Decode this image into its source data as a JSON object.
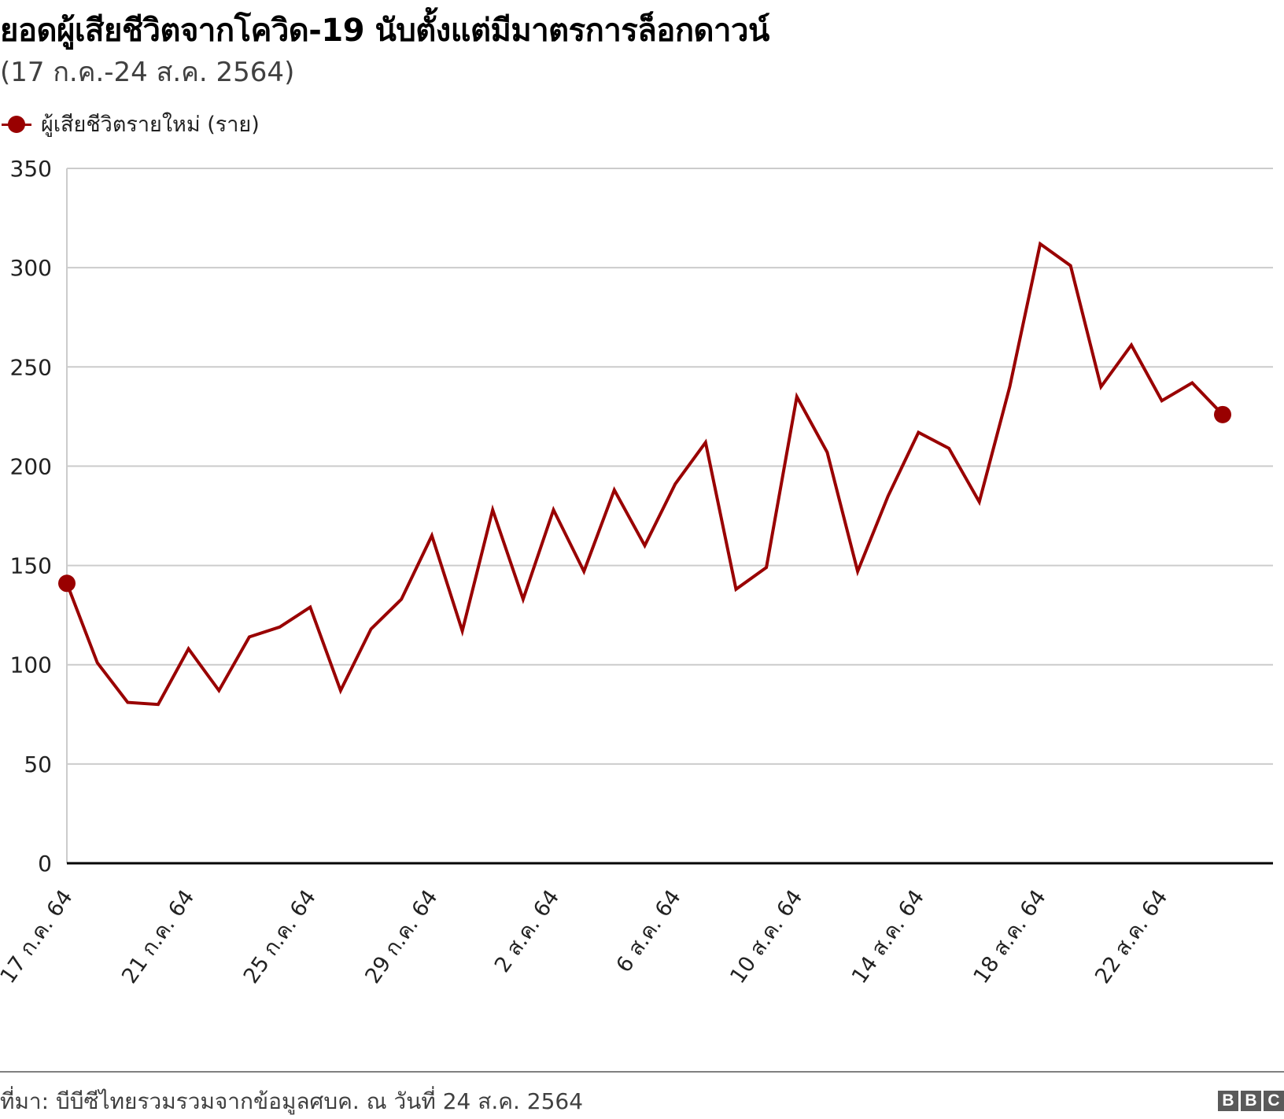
{
  "header": {
    "title": "ยอดผู้เสียชีวิตจากโควิด-19 นับตั้งแต่มีมาตรการล็อกดาวน์",
    "subtitle": "(17 ก.ค.-24 ส.ค. 2564)"
  },
  "legend": {
    "label": "ผู้เสียชีวิตรายใหม่ (ราย)",
    "color": "#990000"
  },
  "footer": {
    "source": "ที่มา: บีบีซีไทยรวมรวมจากข้อมูลศบค. ณ วันที่ 24 ส.ค. 2564",
    "logo": [
      "B",
      "B",
      "C"
    ]
  },
  "chart_data": {
    "type": "line",
    "title": "ยอดผู้เสียชีวิตจากโควิด-19 นับตั้งแต่มีมาตรการล็อกดาวน์",
    "subtitle": "(17 ก.ค.-24 ส.ค. 2564)",
    "xlabel": "",
    "ylabel": "",
    "ylim": [
      0,
      350
    ],
    "yticks": [
      0,
      50,
      100,
      150,
      200,
      250,
      300,
      350
    ],
    "grid": true,
    "legend_position": "top-left",
    "x_tick_labels": [
      {
        "index": 0,
        "label": "17 ก.ค. 64"
      },
      {
        "index": 4,
        "label": "21 ก.ค. 64"
      },
      {
        "index": 8,
        "label": "25 ก.ค. 64"
      },
      {
        "index": 12,
        "label": "29 ก.ค. 64"
      },
      {
        "index": 16,
        "label": "2 ส.ค. 64"
      },
      {
        "index": 20,
        "label": "6 ส.ค. 64"
      },
      {
        "index": 24,
        "label": "10 ส.ค. 64"
      },
      {
        "index": 28,
        "label": "14 ส.ค. 64"
      },
      {
        "index": 32,
        "label": "18 ส.ค. 64"
      },
      {
        "index": 36,
        "label": "22 ส.ค. 64"
      }
    ],
    "x": [
      "17 ก.ค.",
      "18 ก.ค.",
      "19 ก.ค.",
      "20 ก.ค.",
      "21 ก.ค.",
      "22 ก.ค.",
      "23 ก.ค.",
      "24 ก.ค.",
      "25 ก.ค.",
      "26 ก.ค.",
      "27 ก.ค.",
      "28 ก.ค.",
      "29 ก.ค.",
      "30 ก.ค.",
      "31 ก.ค.",
      "1 ส.ค.",
      "2 ส.ค.",
      "3 ส.ค.",
      "4 ส.ค.",
      "5 ส.ค.",
      "6 ส.ค.",
      "7 ส.ค.",
      "8 ส.ค.",
      "9 ส.ค.",
      "10 ส.ค.",
      "11 ส.ค.",
      "12 ส.ค.",
      "13 ส.ค.",
      "14 ส.ค.",
      "15 ส.ค.",
      "16 ส.ค.",
      "17 ส.ค.",
      "18 ส.ค.",
      "19 ส.ค.",
      "20 ส.ค.",
      "21 ส.ค.",
      "22 ส.ค.",
      "23 ส.ค.",
      "24 ส.ค."
    ],
    "series": [
      {
        "name": "ผู้เสียชีวิตรายใหม่ (ราย)",
        "color": "#990000",
        "values": [
          141,
          101,
          81,
          80,
          108,
          87,
          114,
          119,
          129,
          87,
          118,
          133,
          165,
          117,
          178,
          133,
          178,
          147,
          188,
          160,
          191,
          212,
          138,
          149,
          235,
          207,
          147,
          185,
          217,
          209,
          182,
          240,
          312,
          301,
          240,
          261,
          233,
          242,
          226
        ]
      }
    ]
  }
}
